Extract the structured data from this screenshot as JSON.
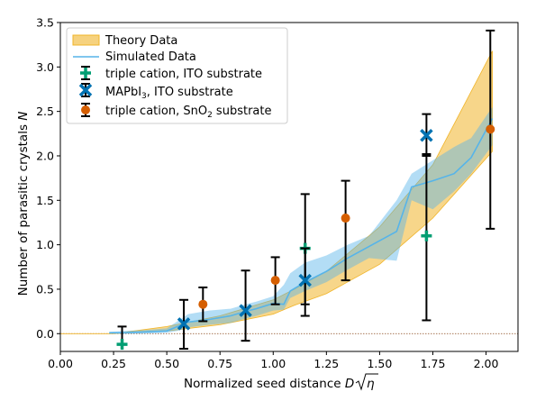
{
  "chart_data": {
    "type": "scatter",
    "title": "",
    "xlabel": "Normalized seed distance D√η",
    "ylabel": "Number of parasitic crystals N",
    "xlim": [
      0.0,
      2.15
    ],
    "ylim": [
      -0.2,
      3.5
    ],
    "xticks": [
      "0.00",
      "0.25",
      "0.50",
      "0.75",
      "1.00",
      "1.25",
      "1.50",
      "1.75",
      "2.00"
    ],
    "yticks": [
      "0.0",
      "0.5",
      "1.0",
      "1.5",
      "2.0",
      "2.5",
      "3.0",
      "3.5"
    ],
    "grid": false,
    "legend_position": "top-left",
    "zero_line": {
      "y": 0,
      "style": "dotted",
      "color": "#8b4a1f"
    },
    "theory_band": {
      "name": "Theory Data",
      "color": "#f0b429",
      "x": [
        0.0,
        0.25,
        0.5,
        0.75,
        1.0,
        1.1,
        1.25,
        1.5,
        1.75,
        2.03
      ],
      "lower": [
        0.0,
        0.0,
        0.03,
        0.1,
        0.22,
        0.32,
        0.45,
        0.78,
        1.3,
        2.05
      ],
      "upper": [
        0.0,
        0.0,
        0.08,
        0.2,
        0.38,
        0.5,
        0.7,
        1.2,
        1.9,
        3.18
      ]
    },
    "simulated": {
      "name": "Simulated Data",
      "color": "#56b4e9",
      "x": [
        0.23,
        0.3,
        0.4,
        0.5,
        0.55,
        0.6,
        0.7,
        0.8,
        0.87,
        0.92,
        1.0,
        1.05,
        1.08,
        1.15,
        1.25,
        1.35,
        1.45,
        1.58,
        1.65,
        1.75,
        1.85,
        1.93,
        2.03
      ],
      "mean": [
        0.01,
        0.01,
        0.02,
        0.03,
        0.08,
        0.13,
        0.16,
        0.2,
        0.25,
        0.28,
        0.34,
        0.33,
        0.48,
        0.58,
        0.7,
        0.85,
        0.98,
        1.15,
        1.65,
        1.72,
        1.8,
        1.98,
        2.42
      ],
      "lower": [
        0.0,
        0.0,
        0.0,
        0.01,
        0.03,
        0.07,
        0.1,
        0.12,
        0.17,
        0.2,
        0.26,
        0.27,
        0.4,
        0.48,
        0.58,
        0.72,
        0.85,
        0.82,
        1.5,
        1.4,
        1.6,
        1.8,
        2.12
      ],
      "upper": [
        0.02,
        0.03,
        0.04,
        0.06,
        0.14,
        0.22,
        0.26,
        0.28,
        0.33,
        0.36,
        0.42,
        0.55,
        0.68,
        0.8,
        0.88,
        1.0,
        1.1,
        1.5,
        1.8,
        1.95,
        2.1,
        2.2,
        2.55
      ]
    },
    "measurements": [
      {
        "name": "triple cation, ITO substrate",
        "marker": "plus",
        "color": "#009e73",
        "x": [
          0.29,
          1.15,
          1.72
        ],
        "y": [
          -0.12,
          0.96,
          1.1
        ],
        "err_low": [
          -0.12,
          0.2,
          0.15
        ],
        "err_high": [
          0.08,
          1.57,
          2.47
        ]
      },
      {
        "name": "MAPbI₃, ITO substrate",
        "marker": "x",
        "color": "#0072b2",
        "x": [
          0.58,
          0.87,
          1.15,
          1.72
        ],
        "y": [
          0.11,
          0.26,
          0.6,
          2.23
        ],
        "err_low": [
          -0.17,
          -0.08,
          0.33,
          2.0
        ],
        "err_high": [
          0.38,
          0.71,
          0.96,
          2.02
        ]
      },
      {
        "name": "triple cation, SnO₂ substrate",
        "marker": "circle",
        "color": "#d55e00",
        "x": [
          0.67,
          1.01,
          1.34,
          2.02
        ],
        "y": [
          0.33,
          0.6,
          1.3,
          2.3
        ],
        "err_low": [
          0.14,
          0.33,
          0.6,
          1.18
        ],
        "err_high": [
          0.52,
          0.86,
          1.72,
          3.41
        ]
      }
    ],
    "legend": {
      "theory": "Theory Data",
      "simulated": "Simulated Data",
      "m1": "triple cation, ITO substrate",
      "m2_prefix": "MAPbI",
      "m2_sub": "3",
      "m2_suffix": ", ITO substrate",
      "m3_prefix": "triple cation, SnO",
      "m3_sub": "2",
      "m3_suffix": " substrate"
    },
    "axis_text": {
      "xlabel_main": "Normalized seed distance ",
      "xlabel_D": "D",
      "xlabel_eta": "η",
      "ylabel_main": "Number of parasitic crystals ",
      "ylabel_N": "N"
    }
  }
}
